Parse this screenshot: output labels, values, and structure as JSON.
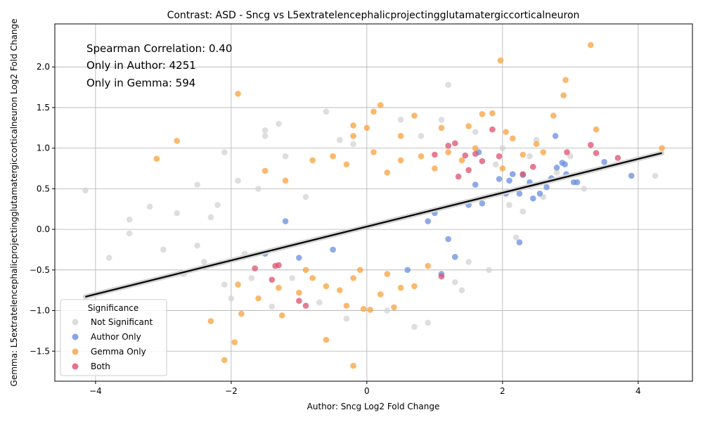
{
  "chart_data": {
    "type": "scatter",
    "title": "Contrast: ASD - Sncg vs L5extratelencephalicprojectingglutamatergiccorticalneuron",
    "xlabel": "Author: Sncg Log2 Fold Change",
    "ylabel": "Gemma: L5extratelencephalicprojectingglutamatergiccorticalneuron Log2 Fold Change",
    "xlim": [
      -4.6,
      4.8
    ],
    "ylim": [
      -1.87,
      2.53
    ],
    "xticks": [
      -4,
      -2,
      0,
      2,
      4
    ],
    "xtick_labels": [
      "−4",
      "−2",
      "0",
      "2",
      "4"
    ],
    "yticks": [
      -1.5,
      -1.0,
      -0.5,
      0.0,
      0.5,
      1.0,
      1.5,
      2.0
    ],
    "ytick_labels": [
      "−1.5",
      "−1.0",
      "−0.5",
      "0.0",
      "0.5",
      "1.0",
      "1.5",
      "2.0"
    ],
    "grid": true,
    "annotations": [
      "Spearman Correlation: 0.40",
      "Only in Author: 4251",
      "Only in Gemma: 594"
    ],
    "legend": {
      "title": "Significance",
      "position": "lower-left",
      "entries": [
        {
          "label": "Not Significant",
          "color": "#d3d3d3"
        },
        {
          "label": "Author Only",
          "color": "#6a8de0"
        },
        {
          "label": "Gemma Only",
          "color": "#f7a23e"
        },
        {
          "label": "Both",
          "color": "#de4f6e"
        }
      ]
    },
    "regression_line": {
      "x": [
        -4.15,
        4.35
      ],
      "y": [
        -0.83,
        0.94
      ],
      "color": "#000000"
    },
    "series": [
      {
        "name": "Not Significant",
        "color": "#d3d3d3",
        "points": [
          [
            -4.15,
            0.48
          ],
          [
            -3.8,
            -0.35
          ],
          [
            -3.5,
            0.12
          ],
          [
            -3.5,
            -0.05
          ],
          [
            -3.2,
            0.28
          ],
          [
            -3.0,
            -0.25
          ],
          [
            -2.8,
            0.2
          ],
          [
            -2.7,
            -0.55
          ],
          [
            -2.5,
            0.55
          ],
          [
            -2.4,
            -0.4
          ],
          [
            -2.2,
            0.3
          ],
          [
            -2.1,
            0.95
          ],
          [
            -2.1,
            -0.68
          ],
          [
            -2.0,
            -0.85
          ],
          [
            -1.9,
            0.6
          ],
          [
            -1.7,
            -0.6
          ],
          [
            -1.5,
            1.22
          ],
          [
            -1.5,
            1.15
          ],
          [
            -1.4,
            -0.95
          ],
          [
            -1.3,
            1.3
          ],
          [
            -1.2,
            0.9
          ],
          [
            -0.7,
            -0.9
          ],
          [
            -0.6,
            1.45
          ],
          [
            -0.4,
            1.1
          ],
          [
            -0.3,
            -1.1
          ],
          [
            -0.2,
            1.05
          ],
          [
            0.3,
            -1.0
          ],
          [
            0.5,
            1.35
          ],
          [
            0.7,
            -1.2
          ],
          [
            0.8,
            1.15
          ],
          [
            0.9,
            -1.15
          ],
          [
            1.1,
            1.35
          ],
          [
            1.2,
            1.78
          ],
          [
            1.3,
            -0.65
          ],
          [
            1.4,
            -0.75
          ],
          [
            1.6,
            1.2
          ],
          [
            1.8,
            -0.5
          ],
          [
            2.0,
            1.0
          ],
          [
            2.2,
            -0.1
          ],
          [
            2.3,
            0.22
          ],
          [
            2.5,
            1.1
          ],
          [
            2.6,
            0.4
          ],
          [
            2.8,
            0.7
          ],
          [
            3.0,
            0.9
          ],
          [
            3.2,
            0.5
          ],
          [
            4.25,
            0.66
          ],
          [
            -2.5,
            -0.2
          ],
          [
            -2.3,
            0.15
          ],
          [
            -1.8,
            -0.3
          ],
          [
            -1.6,
            0.5
          ],
          [
            1.9,
            0.8
          ],
          [
            2.1,
            0.3
          ],
          [
            -1.1,
            -0.6
          ],
          [
            -0.9,
            0.4
          ],
          [
            1.5,
            -0.4
          ],
          [
            2.4,
            0.9
          ]
        ]
      },
      {
        "name": "Author Only",
        "color": "#6a8de0",
        "points": [
          [
            1.95,
            0.62
          ],
          [
            2.05,
            0.44
          ],
          [
            2.1,
            0.6
          ],
          [
            2.15,
            0.68
          ],
          [
            2.25,
            0.44
          ],
          [
            2.3,
            0.67
          ],
          [
            2.4,
            0.58
          ],
          [
            2.45,
            0.38
          ],
          [
            2.55,
            0.44
          ],
          [
            2.65,
            0.52
          ],
          [
            2.72,
            0.63
          ],
          [
            2.78,
            1.15
          ],
          [
            2.8,
            0.76
          ],
          [
            2.88,
            0.82
          ],
          [
            2.92,
            0.8
          ],
          [
            2.94,
            0.68
          ],
          [
            3.05,
            0.58
          ],
          [
            3.1,
            0.58
          ],
          [
            3.5,
            0.83
          ],
          [
            3.9,
            0.66
          ],
          [
            2.25,
            -0.16
          ],
          [
            1.7,
            0.32
          ],
          [
            1.6,
            0.55
          ],
          [
            1.5,
            0.3
          ],
          [
            1.2,
            -0.12
          ],
          [
            1.3,
            -0.34
          ],
          [
            1.1,
            -0.55
          ],
          [
            0.6,
            -0.5
          ],
          [
            -1.5,
            -0.3
          ],
          [
            -1.0,
            -0.35
          ],
          [
            -0.5,
            -0.25
          ],
          [
            -1.2,
            0.1
          ],
          [
            0.9,
            0.1
          ],
          [
            1.0,
            0.2
          ],
          [
            1.65,
            0.95
          ]
        ]
      },
      {
        "name": "Gemma Only",
        "color": "#f7a23e",
        "points": [
          [
            -3.1,
            0.87
          ],
          [
            -2.8,
            1.09
          ],
          [
            -1.9,
            1.67
          ],
          [
            -2.3,
            -1.13
          ],
          [
            -2.1,
            -1.61
          ],
          [
            -1.95,
            -1.39
          ],
          [
            -1.85,
            -1.04
          ],
          [
            -1.25,
            -1.06
          ],
          [
            -0.6,
            -1.36
          ],
          [
            -0.2,
            -1.68
          ],
          [
            0.05,
            -0.99
          ],
          [
            -0.05,
            -0.98
          ],
          [
            -0.3,
            -0.94
          ],
          [
            0.4,
            -0.96
          ],
          [
            0.1,
            1.45
          ],
          [
            0.0,
            1.25
          ],
          [
            -0.2,
            1.28
          ],
          [
            -0.2,
            1.15
          ],
          [
            0.2,
            1.53
          ],
          [
            0.5,
            1.15
          ],
          [
            0.7,
            1.4
          ],
          [
            1.1,
            1.25
          ],
          [
            1.5,
            1.27
          ],
          [
            1.7,
            1.42
          ],
          [
            1.85,
            1.43
          ],
          [
            1.97,
            2.08
          ],
          [
            2.05,
            1.2
          ],
          [
            2.15,
            1.12
          ],
          [
            2.9,
            1.65
          ],
          [
            2.93,
            1.84
          ],
          [
            3.3,
            2.27
          ],
          [
            2.75,
            1.4
          ],
          [
            3.38,
            1.23
          ],
          [
            4.35,
            1.0
          ],
          [
            -1.9,
            -0.68
          ],
          [
            -1.6,
            -0.85
          ],
          [
            -1.3,
            -0.72
          ],
          [
            -1.0,
            -0.78
          ],
          [
            -0.8,
            -0.6
          ],
          [
            -0.6,
            -0.7
          ],
          [
            -0.4,
            -0.75
          ],
          [
            -0.2,
            -0.6
          ],
          [
            0.2,
            -0.8
          ],
          [
            0.5,
            -0.72
          ],
          [
            0.7,
            -0.7
          ],
          [
            -1.5,
            0.72
          ],
          [
            -0.8,
            0.85
          ],
          [
            -0.5,
            0.9
          ],
          [
            -0.3,
            0.8
          ],
          [
            0.1,
            0.95
          ],
          [
            0.3,
            0.7
          ],
          [
            0.5,
            0.85
          ],
          [
            0.8,
            0.9
          ],
          [
            1.0,
            0.75
          ],
          [
            1.2,
            0.95
          ],
          [
            1.4,
            0.85
          ],
          [
            1.6,
            1.0
          ],
          [
            2.5,
            1.05
          ],
          [
            2.6,
            0.95
          ],
          [
            2.3,
            0.92
          ],
          [
            -1.2,
            0.6
          ],
          [
            -0.9,
            -0.5
          ],
          [
            0.9,
            -0.45
          ],
          [
            0.3,
            -0.55
          ],
          [
            -0.1,
            -0.5
          ],
          [
            2.0,
            0.75
          ]
        ]
      },
      {
        "name": "Both",
        "color": "#de4f6e",
        "points": [
          [
            1.85,
            1.23
          ],
          [
            1.45,
            0.91
          ],
          [
            1.3,
            1.06
          ],
          [
            1.2,
            1.03
          ],
          [
            1.95,
            0.9
          ],
          [
            1.0,
            0.92
          ],
          [
            3.3,
            1.04
          ],
          [
            3.38,
            0.94
          ],
          [
            3.7,
            0.88
          ],
          [
            2.95,
            0.95
          ],
          [
            2.45,
            0.77
          ],
          [
            2.3,
            0.68
          ],
          [
            1.6,
            0.93
          ],
          [
            1.35,
            0.65
          ],
          [
            1.5,
            0.73
          ],
          [
            1.7,
            0.84
          ],
          [
            -1.65,
            -0.48
          ],
          [
            -1.35,
            -0.45
          ],
          [
            -1.4,
            -0.62
          ],
          [
            -1.0,
            -0.88
          ],
          [
            -0.9,
            -0.94
          ],
          [
            -1.3,
            -0.44
          ],
          [
            1.1,
            -0.58
          ]
        ]
      }
    ]
  }
}
